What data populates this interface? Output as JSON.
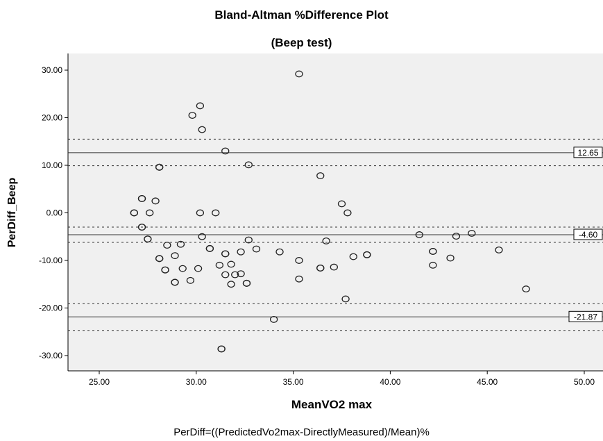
{
  "chart_data": {
    "type": "scatter",
    "title": "Bland-Altman %Difference Plot",
    "subtitle": "(Beep test)",
    "xlabel": "MeanVO2 max",
    "ylabel": "PerDiff_Beep",
    "footnote": "PerDiff=((PredictedVo2max-DirectlyMeasured)/Mean)%",
    "xlim": [
      23.5,
      50.5
    ],
    "ylim": [
      -34,
      34
    ],
    "x_ticks": [
      "25.00",
      "30.00",
      "35.00",
      "40.00",
      "45.00",
      "50.00"
    ],
    "y_ticks": [
      "30.00",
      "20.00",
      "10.00",
      "0.00",
      "-10.00",
      "-20.00",
      "-30.00"
    ],
    "grid": false,
    "reference_lines": [
      {
        "label": "12.65",
        "value": 12.65,
        "style": "solid"
      },
      {
        "label": "-4.60",
        "value": -4.6,
        "style": "solid"
      },
      {
        "label": "-21.87",
        "value": -21.87,
        "style": "solid"
      }
    ],
    "confidence_lines": [
      15.5,
      9.9,
      -3.0,
      -6.2,
      -19.1,
      -24.7
    ],
    "points": [
      [
        26.8,
        0.0
      ],
      [
        26.8,
        0.0
      ],
      [
        27.2,
        3.0
      ],
      [
        27.2,
        3.0
      ],
      [
        27.2,
        -3.0
      ],
      [
        27.2,
        -3.0
      ],
      [
        27.5,
        -5.5
      ],
      [
        27.5,
        -5.5
      ],
      [
        27.6,
        0.0
      ],
      [
        27.9,
        2.5
      ],
      [
        28.1,
        9.6
      ],
      [
        28.1,
        9.6
      ],
      [
        28.1,
        -9.6
      ],
      [
        28.1,
        -9.6
      ],
      [
        28.4,
        -12.0
      ],
      [
        28.4,
        -12.0
      ],
      [
        28.5,
        -6.8
      ],
      [
        28.9,
        -9.0
      ],
      [
        28.9,
        -14.6
      ],
      [
        28.9,
        -14.6
      ],
      [
        29.2,
        -6.6
      ],
      [
        29.3,
        -11.7
      ],
      [
        29.7,
        -14.2
      ],
      [
        29.8,
        20.5
      ],
      [
        30.1,
        -11.7
      ],
      [
        30.2,
        22.5
      ],
      [
        30.2,
        0.0
      ],
      [
        30.3,
        17.5
      ],
      [
        30.3,
        -5.0
      ],
      [
        30.7,
        -7.5
      ],
      [
        30.7,
        -7.5
      ],
      [
        31.0,
        0.0
      ],
      [
        31.2,
        -11.0
      ],
      [
        31.3,
        -28.6
      ],
      [
        31.3,
        -28.6
      ],
      [
        31.5,
        13.0
      ],
      [
        31.5,
        -8.6
      ],
      [
        31.5,
        -8.6
      ],
      [
        31.5,
        -13.0
      ],
      [
        31.8,
        -10.8
      ],
      [
        31.8,
        -15.0
      ],
      [
        32.0,
        -13.0
      ],
      [
        32.3,
        -12.8
      ],
      [
        32.3,
        -8.2
      ],
      [
        32.6,
        -14.8
      ],
      [
        32.6,
        -14.8
      ],
      [
        32.7,
        10.1
      ],
      [
        32.7,
        -5.7
      ],
      [
        33.1,
        -7.6
      ],
      [
        34.0,
        -22.4
      ],
      [
        34.3,
        -8.2
      ],
      [
        35.3,
        29.2
      ],
      [
        35.3,
        -10.0
      ],
      [
        35.3,
        -13.9
      ],
      [
        36.4,
        7.8
      ],
      [
        36.4,
        -11.6
      ],
      [
        36.4,
        -11.6
      ],
      [
        36.7,
        -5.9
      ],
      [
        37.1,
        -11.4
      ],
      [
        37.5,
        1.9
      ],
      [
        37.7,
        -18.1
      ],
      [
        37.8,
        0.0
      ],
      [
        38.1,
        -9.2
      ],
      [
        38.8,
        -8.8
      ],
      [
        38.8,
        -8.8
      ],
      [
        41.5,
        -4.6
      ],
      [
        42.2,
        -8.1
      ],
      [
        42.2,
        -8.1
      ],
      [
        42.2,
        -11.0
      ],
      [
        43.1,
        -9.5
      ],
      [
        43.4,
        -4.9
      ],
      [
        44.2,
        -4.3
      ],
      [
        45.6,
        -7.8
      ],
      [
        47.0,
        -16.0
      ]
    ]
  }
}
